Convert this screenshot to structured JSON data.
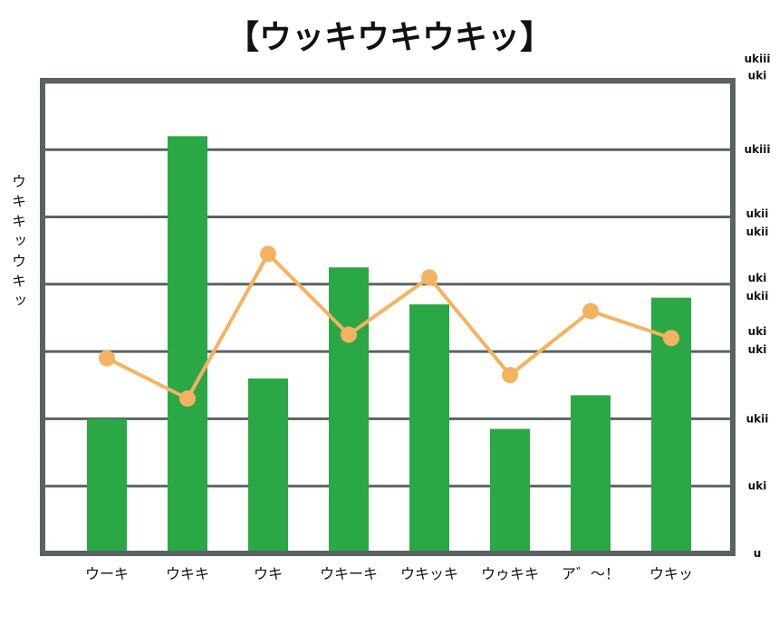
{
  "chart_data": {
    "type": "bar",
    "title": "【ウッキウキウキッ】",
    "ylabel": "ウキキッウキッ",
    "xlabel": "",
    "categories": [
      "ウーキ",
      "ウキキ",
      "ウキ",
      "ウキーキ",
      "ウキッキ",
      "ウゥキキ",
      "ア゛～！",
      "ウキッ"
    ],
    "ylim": [
      0,
      7
    ],
    "grid": true,
    "colors": {
      "bars": "#2aa845",
      "line": "#f5b261",
      "frame": "#5a6262",
      "grid": "#5a6262"
    },
    "series": [
      {
        "type": "bar",
        "values": [
          2.0,
          6.2,
          2.6,
          4.25,
          3.7,
          1.85,
          2.35,
          3.8
        ]
      },
      {
        "type": "line",
        "values": [
          2.9,
          2.3,
          4.45,
          3.25,
          4.1,
          2.65,
          3.6,
          3.2
        ]
      }
    ],
    "right_ticks": [
      {
        "label": "ukiii",
        "value": 7.35
      },
      {
        "label": "uki",
        "value": 7.1
      },
      {
        "label": "ukiii",
        "value": 6.0
      },
      {
        "label": "ukii",
        "value": 5.05
      },
      {
        "label": "ukii",
        "value": 4.78
      },
      {
        "label": "uki",
        "value": 4.09
      },
      {
        "label": "ukii",
        "value": 3.82
      },
      {
        "label": "uki",
        "value": 3.3
      },
      {
        "label": "uki",
        "value": 3.03
      },
      {
        "label": "ukii",
        "value": 2.0
      },
      {
        "label": "uki",
        "value": 1.0
      },
      {
        "label": "u",
        "value": 0
      }
    ]
  }
}
